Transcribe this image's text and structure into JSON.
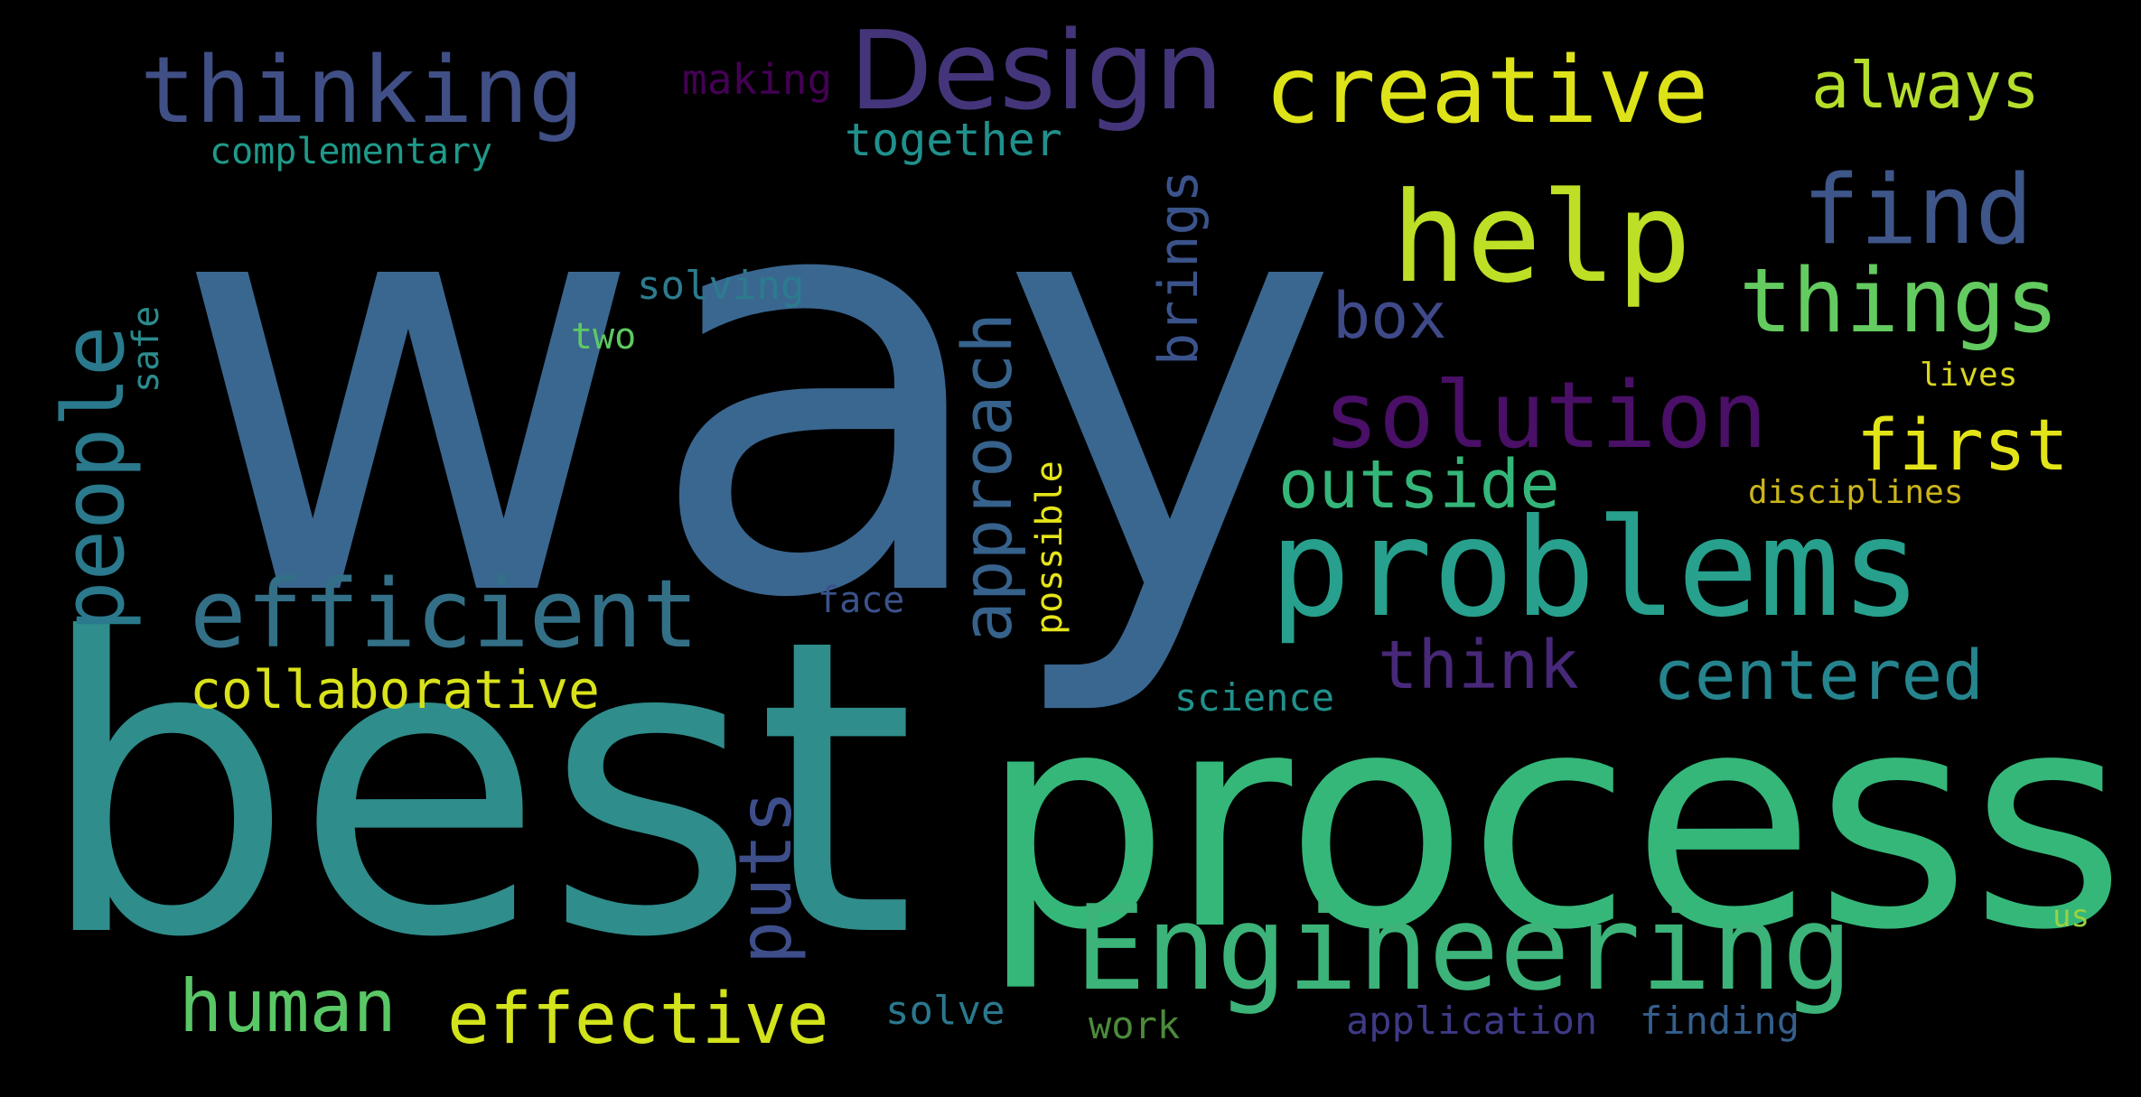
{
  "words": [
    {
      "text": "way",
      "color": "#3a6790"
    },
    {
      "text": "best",
      "color": "#2f8d8b"
    },
    {
      "text": "process",
      "color": "#35b779"
    },
    {
      "text": "Engineering",
      "color": "#3cb379"
    },
    {
      "text": "problems",
      "color": "#27a08d"
    },
    {
      "text": "Design",
      "color": "#44357a"
    },
    {
      "text": "thinking",
      "color": "#404f85"
    },
    {
      "text": "creative",
      "color": "#dde318"
    },
    {
      "text": "help",
      "color": "#bddf26"
    },
    {
      "text": "find",
      "color": "#3e5689"
    },
    {
      "text": "things",
      "color": "#63cb5f"
    },
    {
      "text": "solution",
      "color": "#4a0f66"
    },
    {
      "text": "efficient",
      "color": "#337087"
    },
    {
      "text": "people",
      "color": "#2a798c"
    },
    {
      "text": "approach",
      "color": "#36628c"
    },
    {
      "text": "collaborative",
      "color": "#d9e21a"
    },
    {
      "text": "human",
      "color": "#59c765"
    },
    {
      "text": "effective",
      "color": "#d2e21b"
    },
    {
      "text": "centered",
      "color": "#25848d"
    },
    {
      "text": "outside",
      "color": "#34b679"
    },
    {
      "text": "first",
      "color": "#e2e418"
    },
    {
      "text": "box",
      "color": "#3f4a8a"
    },
    {
      "text": "think",
      "color": "#482878"
    },
    {
      "text": "puts",
      "color": "#3d4e8a"
    },
    {
      "text": "always",
      "color": "#b5de2b"
    },
    {
      "text": "brings",
      "color": "#3b538b"
    },
    {
      "text": "together",
      "color": "#20908c"
    },
    {
      "text": "making",
      "color": "#440154"
    },
    {
      "text": "complementary",
      "color": "#1f9a8a"
    },
    {
      "text": "solving",
      "color": "#2c7b8e"
    },
    {
      "text": "two",
      "color": "#5ec962"
    },
    {
      "text": "safe",
      "color": "#2b8b8c"
    },
    {
      "text": "possible",
      "color": "#e5e419"
    },
    {
      "text": "face",
      "color": "#3b528b"
    },
    {
      "text": "science",
      "color": "#21918c"
    },
    {
      "text": "solve",
      "color": "#2a788e"
    },
    {
      "text": "work",
      "color": "#4c8a3a"
    },
    {
      "text": "application",
      "color": "#3e3a86"
    },
    {
      "text": "finding",
      "color": "#355f8d"
    },
    {
      "text": "lives",
      "color": "#d8d621"
    },
    {
      "text": "disciplines",
      "color": "#cbb51b"
    },
    {
      "text": "us",
      "color": "#9ad240"
    }
  ]
}
